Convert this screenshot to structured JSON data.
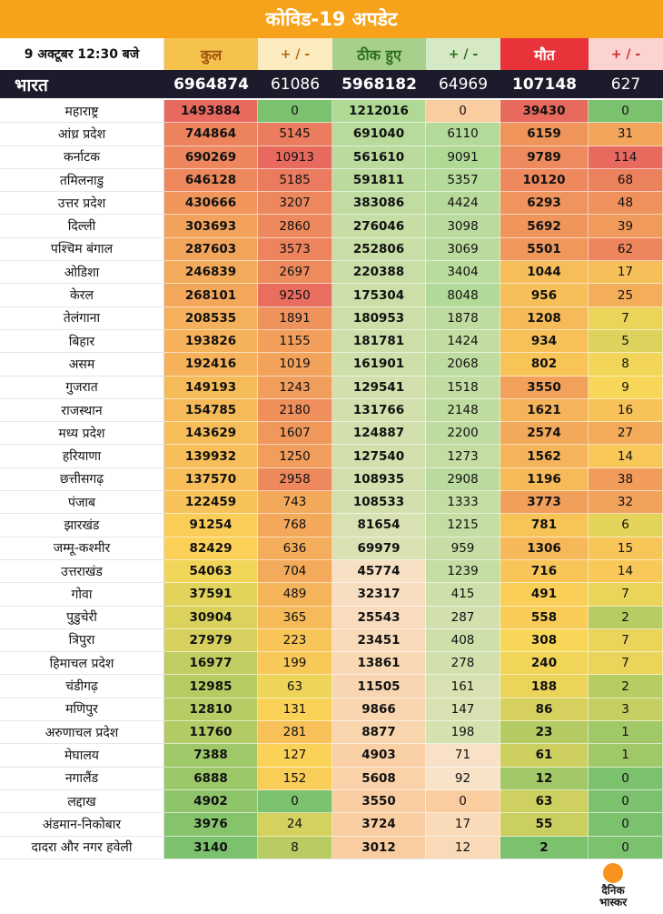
{
  "title": "कोविड-19 अपडेट",
  "header": {
    "date": "9 अक्टूबर 12:30 बजे",
    "total": "कुल",
    "total_delta": "+ / -",
    "recovered": "ठीक हुए",
    "recovered_delta": "+ / -",
    "deaths": "मौत",
    "deaths_delta": "+ / -"
  },
  "india": {
    "name": "भारत",
    "total": "6964874",
    "total_delta": "61086",
    "recovered": "5968182",
    "recovered_delta": "64969",
    "deaths": "107148",
    "deaths_delta": "627"
  },
  "columns": [
    "state",
    "total",
    "total_delta",
    "recovered",
    "recovered_delta",
    "deaths",
    "deaths_delta"
  ],
  "rows": [
    [
      "महाराष्ट्र",
      "1493884",
      "0",
      "1212016",
      "0",
      "39430",
      "0"
    ],
    [
      "आंध्र प्रदेश",
      "744864",
      "5145",
      "691040",
      "6110",
      "6159",
      "31"
    ],
    [
      "कर्नाटक",
      "690269",
      "10913",
      "561610",
      "9091",
      "9789",
      "114"
    ],
    [
      "तमिलनाडु",
      "646128",
      "5185",
      "591811",
      "5357",
      "10120",
      "68"
    ],
    [
      "उत्तर प्रदेश",
      "430666",
      "3207",
      "383086",
      "4424",
      "6293",
      "48"
    ],
    [
      "दिल्ली",
      "303693",
      "2860",
      "276046",
      "3098",
      "5692",
      "39"
    ],
    [
      "पश्चिम बंगाल",
      "287603",
      "3573",
      "252806",
      "3069",
      "5501",
      "62"
    ],
    [
      "ओडिशा",
      "246839",
      "2697",
      "220388",
      "3404",
      "1044",
      "17"
    ],
    [
      "केरल",
      "268101",
      "9250",
      "175304",
      "8048",
      "956",
      "25"
    ],
    [
      "तेलंगाना",
      "208535",
      "1891",
      "180953",
      "1878",
      "1208",
      "7"
    ],
    [
      "बिहार",
      "193826",
      "1155",
      "181781",
      "1424",
      "934",
      "5"
    ],
    [
      "असम",
      "192416",
      "1019",
      "161901",
      "2068",
      "802",
      "8"
    ],
    [
      "गुजरात",
      "149193",
      "1243",
      "129541",
      "1518",
      "3550",
      "9"
    ],
    [
      "राजस्थान",
      "154785",
      "2180",
      "131766",
      "2148",
      "1621",
      "16"
    ],
    [
      "मध्य प्रदेश",
      "143629",
      "1607",
      "124887",
      "2200",
      "2574",
      "27"
    ],
    [
      "हरियाणा",
      "139932",
      "1250",
      "127540",
      "1273",
      "1562",
      "14"
    ],
    [
      "छत्तीसगढ़",
      "137570",
      "2958",
      "108935",
      "2908",
      "1196",
      "38"
    ],
    [
      "पंजाब",
      "122459",
      "743",
      "108533",
      "1333",
      "3773",
      "32"
    ],
    [
      "झारखंड",
      "91254",
      "768",
      "81654",
      "1215",
      "781",
      "6"
    ],
    [
      "जम्मू-कश्मीर",
      "82429",
      "636",
      "69979",
      "959",
      "1306",
      "15"
    ],
    [
      "उत्तराखंड",
      "54063",
      "704",
      "45774",
      "1239",
      "716",
      "14"
    ],
    [
      "गोवा",
      "37591",
      "489",
      "32317",
      "415",
      "491",
      "7"
    ],
    [
      "पुडुचेरी",
      "30904",
      "365",
      "25543",
      "287",
      "558",
      "2"
    ],
    [
      "त्रिपुरा",
      "27979",
      "223",
      "23451",
      "408",
      "308",
      "7"
    ],
    [
      "हिमाचल प्रदेश",
      "16977",
      "199",
      "13861",
      "278",
      "240",
      "7"
    ],
    [
      "चंडीगढ़",
      "12985",
      "63",
      "11505",
      "161",
      "188",
      "2"
    ],
    [
      "मणिपुर",
      "12810",
      "131",
      "9866",
      "147",
      "86",
      "3"
    ],
    [
      "अरुणाचल प्रदेश",
      "11760",
      "281",
      "8877",
      "198",
      "23",
      "1"
    ],
    [
      "मेघालय",
      "7388",
      "127",
      "4903",
      "71",
      "61",
      "1"
    ],
    [
      "नगालैंड",
      "6888",
      "152",
      "5608",
      "92",
      "12",
      "0"
    ],
    [
      "लद्दाख",
      "4902",
      "0",
      "3550",
      "0",
      "63",
      "0"
    ],
    [
      "अंडमान-निकोबार",
      "3976",
      "24",
      "3724",
      "17",
      "55",
      "0"
    ],
    [
      "दादरा और नगर हवेली",
      "3140",
      "8",
      "3012",
      "12",
      "2",
      "0"
    ]
  ],
  "logo": {
    "line1": "दैनिक",
    "line2": "भास्कर"
  },
  "colors": {
    "orange": "#f7a21b",
    "dark_band": "#1b1b2b",
    "header_total": "#f5c24e",
    "header_recovered": "#a8d08d",
    "header_deaths": "#e8333a",
    "green": "#7cc26e",
    "yellow": "#fbd757",
    "red": "#e86a5f"
  }
}
